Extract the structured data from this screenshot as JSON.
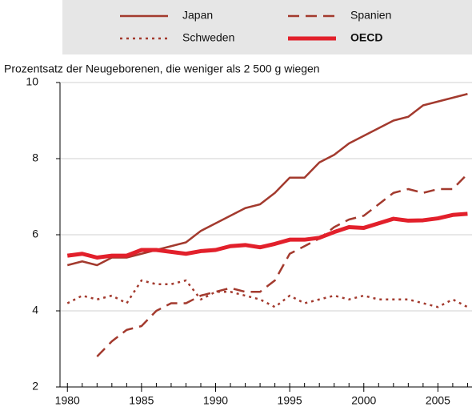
{
  "chart_data": {
    "type": "line",
    "subtitle": "Prozentsatz der Neugeborenen, die weniger als  2 500 g wiegen",
    "x": [
      1980,
      1981,
      1982,
      1983,
      1984,
      1985,
      1986,
      1987,
      1988,
      1989,
      1990,
      1991,
      1992,
      1993,
      1994,
      1995,
      1996,
      1997,
      1998,
      1999,
      2000,
      2001,
      2002,
      2003,
      2004,
      2005,
      2006,
      2007
    ],
    "series": [
      {
        "name": "Japan",
        "color": "#a33a2e",
        "style": "solid",
        "width": 2.5,
        "values": [
          5.2,
          5.3,
          5.2,
          5.4,
          5.4,
          5.5,
          5.6,
          5.7,
          5.8,
          6.1,
          6.3,
          6.5,
          6.7,
          6.8,
          7.1,
          7.5,
          7.5,
          7.9,
          8.1,
          8.4,
          8.6,
          8.8,
          9.0,
          9.1,
          9.4,
          9.5,
          9.6,
          9.7
        ]
      },
      {
        "name": "Spanien",
        "color": "#a33a2e",
        "style": "dashed",
        "width": 2.5,
        "values": [
          null,
          null,
          2.8,
          3.2,
          3.5,
          3.6,
          4.0,
          4.2,
          4.2,
          4.4,
          4.5,
          4.6,
          4.5,
          4.5,
          4.8,
          5.5,
          5.7,
          5.9,
          6.2,
          6.4,
          6.5,
          6.8,
          7.1,
          7.2,
          7.1,
          7.2,
          7.2,
          7.6
        ]
      },
      {
        "name": "Schweden",
        "color": "#a33a2e",
        "style": "dotted",
        "width": 2.5,
        "values": [
          4.2,
          4.4,
          4.3,
          4.4,
          4.2,
          4.8,
          4.7,
          4.7,
          4.8,
          4.3,
          4.5,
          4.5,
          4.4,
          4.3,
          4.1,
          4.4,
          4.2,
          4.3,
          4.4,
          4.3,
          4.4,
          4.3,
          4.3,
          4.3,
          4.2,
          4.1,
          4.3,
          4.1
        ]
      },
      {
        "name": "OECD",
        "color": "#e2202b",
        "style": "solid",
        "width": 5,
        "values": [
          5.45,
          5.5,
          5.4,
          5.45,
          5.45,
          5.6,
          5.6,
          5.55,
          5.5,
          5.57,
          5.6,
          5.7,
          5.73,
          5.67,
          5.76,
          5.87,
          5.87,
          5.92,
          6.07,
          6.2,
          6.18,
          6.3,
          6.42,
          6.37,
          6.38,
          6.43,
          6.52,
          6.55
        ]
      }
    ],
    "xlim": [
      1979.5,
      2007.3
    ],
    "xticks": [
      1980,
      1985,
      1990,
      1995,
      2000,
      2005
    ],
    "ylim": [
      2,
      10
    ],
    "yticks": [
      2,
      4,
      6,
      8,
      10
    ],
    "grid": true
  }
}
